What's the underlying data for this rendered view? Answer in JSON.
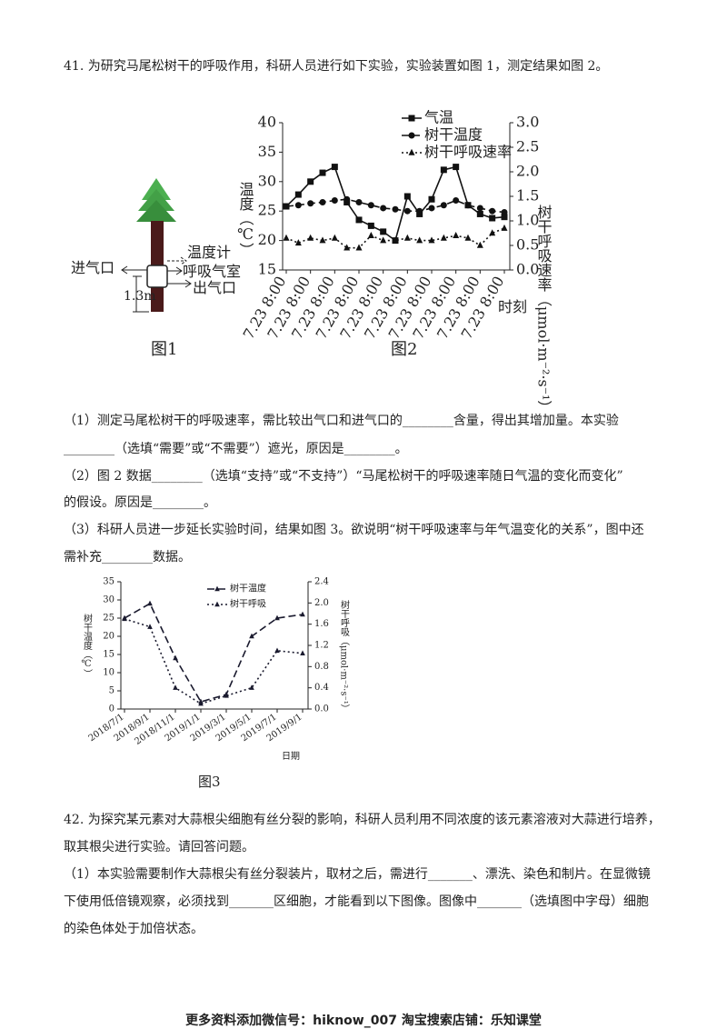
{
  "q41": {
    "title": "41. 为研究马尾松树干的呼吸作用，科研人员进行如下实验，实验装置如图 1，测定结果如图 2。",
    "lines": [
      "（1）测定马尾松树干的呼吸速率，需比较出气口和进气口的________含量，得出其增加量。本实验",
      "________（选填“需要”或“不需要”）遮光，原因是________。",
      "（2）图 2 数据________（选填“支持”或“不支持”）“马尾松树干的呼吸速率随日气温的变化而变化”",
      "的假设。原因是________。",
      "（3）科研人员进一步延长实验时间，结果如图 3。欲说明“树干呼吸速率与年气温变化的关系”，图中还",
      "需补充________数据。"
    ]
  },
  "figure1": {
    "inlet": "进气口",
    "thermometer": "温度计",
    "chamber": "呼吸气室",
    "outlet": "出气口",
    "height": "1.3m",
    "caption": "图1"
  },
  "chart_data": [
    {
      "type": "line",
      "caption": "图2",
      "x_label": "时刻",
      "y_label": "温度（℃）",
      "y2_label": "树干呼吸速率（μmol·m⁻²·s⁻¹）",
      "legend": "upper right",
      "categories": [
        "7.23 8:00",
        null,
        "7.23 8:00",
        null,
        "7.23 8:00",
        null,
        "7.23 8:00",
        null,
        "7.23 8:00",
        null,
        "7.23 8:00",
        null,
        "7.23 8:00",
        null,
        "7.23 8:00",
        null,
        "7.23 8:00",
        null,
        "7.23 8:00"
      ],
      "ylim": [
        15,
        40
      ],
      "yticks": [
        15,
        20,
        25,
        30,
        35,
        40
      ],
      "y2lim": [
        0,
        3
      ],
      "y2ticks": [
        {
          "value": 0,
          "label": "0.0"
        },
        0.5,
        {
          "value": 1,
          "label": "1.0"
        },
        1.5,
        {
          "value": 2,
          "label": "2.0"
        },
        2.5,
        {
          "value": 3,
          "label": "3.0"
        }
      ],
      "series": [
        {
          "name": "气温",
          "color": "#111111",
          "dash": "solid",
          "marker": "square",
          "values": [
            25.8,
            27.8,
            30,
            31.5,
            32.5,
            26.5,
            23.5,
            22.5,
            21.5,
            20,
            27.5,
            24.5,
            27,
            32,
            32.5,
            26,
            24.5,
            23.8,
            24
          ]
        },
        {
          "name": "树干温度",
          "color": "#111111",
          "dash": "dashed",
          "marker": "circle",
          "values": [
            25.8,
            26,
            26.3,
            26.5,
            26.8,
            27,
            26.5,
            26,
            25.5,
            25.3,
            25,
            25,
            25.5,
            26,
            26.8,
            26,
            25.5,
            25,
            24.8
          ]
        },
        {
          "name": "树干呼吸速率",
          "color": "#111111",
          "dash": "dotted",
          "marker": "triangle",
          "axis": "y2",
          "values": [
            0.65,
            0.55,
            0.65,
            0.6,
            0.65,
            0.45,
            0.45,
            0.7,
            0.6,
            0.6,
            0.65,
            0.6,
            0.6,
            0.65,
            0.7,
            0.65,
            0.5,
            0.75,
            0.85
          ]
        }
      ]
    },
    {
      "type": "line",
      "caption": "图3",
      "x_label": "日期",
      "y_label": "树干温度（℃）",
      "y2_label": "树干呼吸（μmol·m⁻²·s⁻¹）",
      "legend": "upper center",
      "categories": [
        "2018/7/1",
        "2018/9/1",
        "2018/11/1",
        "2019/1/1",
        "2019/3/1",
        "2019/5/1",
        "2019/7/1",
        "2019/9/1"
      ],
      "ylim": [
        0,
        35
      ],
      "yticks": [
        0,
        5,
        10,
        15,
        20,
        25,
        30,
        35
      ],
      "y2lim": [
        0,
        2.4
      ],
      "y2ticks": [
        {
          "value": 0,
          "label": "0.0"
        },
        0.4,
        0.8,
        1.2,
        1.6,
        {
          "value": 2,
          "label": "2.0"
        },
        2.4
      ],
      "series": [
        {
          "name": "树干温度",
          "color": "#1a1a2e",
          "dash": "dashed",
          "marker": "triangle",
          "values": [
            25,
            29,
            14,
            2,
            4,
            20,
            25,
            26
          ]
        },
        {
          "name": "树干呼吸",
          "color": "#1a1a2e",
          "dash": "dotted",
          "marker": "triangle",
          "axis": "y2",
          "values": [
            1.7,
            1.55,
            0.4,
            0.1,
            0.25,
            0.4,
            1.1,
            1.05
          ]
        }
      ]
    }
  ],
  "q42": {
    "lines": [
      "42. 为探究某元素对大蒜根尖细胞有丝分裂的影响，科研人员利用不同浓度的该元素溶液对大蒜进行培养，",
      "取其根尖进行实验。请回答问题。",
      "（1）本实验需要制作大蒜根尖有丝分裂装片，取材之后，需进行_______、漂洗、染色和制片。在显微镜",
      "下使用低倍镜观察，必须找到_______区细胞，才能看到以下图像。图像中_______（选填图中字母）细胞",
      "的染色体处于加倍状态。"
    ]
  },
  "footer": "更多资料添加微信号：hiknow_007  淘宝搜索店铺：乐知课堂"
}
